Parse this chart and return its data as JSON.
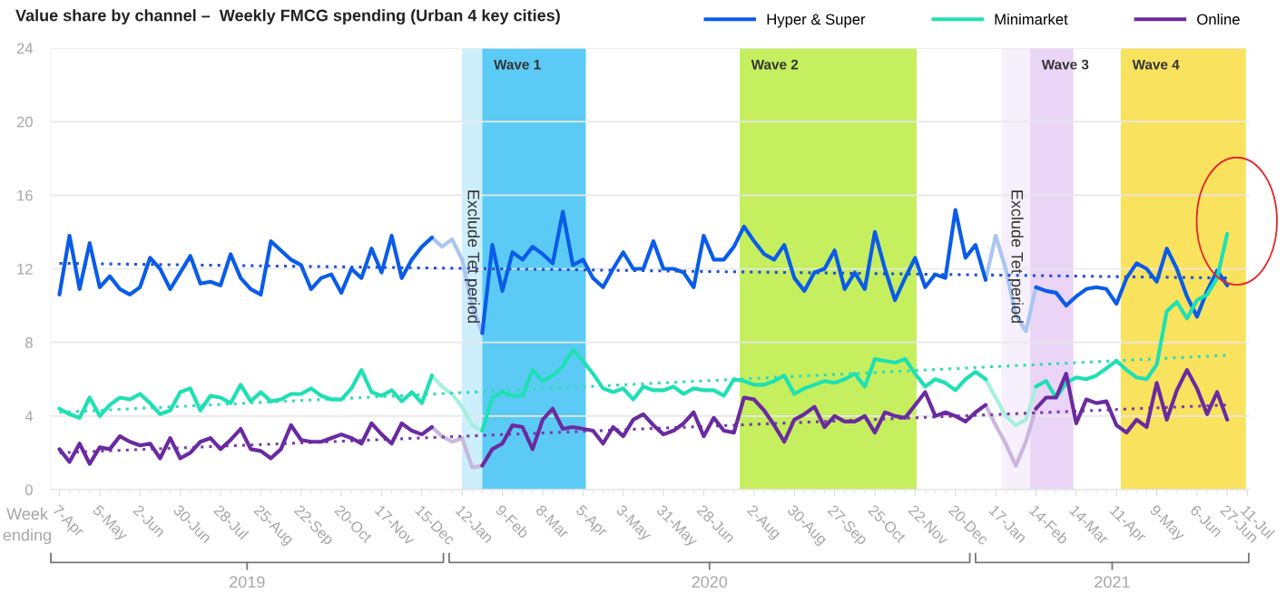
{
  "chart_data": {
    "type": "line",
    "title": "Value share by channel –  Weekly FMCG spending (Urban 4 key cities)",
    "x": [
      "2019-04-07",
      "2019-04-14",
      "2019-04-21",
      "2019-04-28",
      "2019-05-05",
      "2019-05-12",
      "2019-05-19",
      "2019-05-26",
      "2019-06-02",
      "2019-06-09",
      "2019-06-16",
      "2019-06-23",
      "2019-06-30",
      "2019-07-07",
      "2019-07-14",
      "2019-07-21",
      "2019-07-28",
      "2019-08-04",
      "2019-08-11",
      "2019-08-18",
      "2019-08-25",
      "2019-09-01",
      "2019-09-08",
      "2019-09-15",
      "2019-09-22",
      "2019-09-29",
      "2019-10-06",
      "2019-10-13",
      "2019-10-20",
      "2019-10-27",
      "2019-11-03",
      "2019-11-10",
      "2019-11-17",
      "2019-11-24",
      "2019-12-01",
      "2019-12-08",
      "2019-12-15",
      "2019-12-22",
      "2019-12-29",
      "2020-01-05",
      "2020-01-12",
      "2020-01-19",
      "2020-01-26",
      "2020-02-02",
      "2020-02-09",
      "2020-02-16",
      "2020-02-23",
      "2020-03-01",
      "2020-03-08",
      "2020-03-15",
      "2020-03-22",
      "2020-03-29",
      "2020-04-05",
      "2020-04-12",
      "2020-04-19",
      "2020-04-26",
      "2020-05-03",
      "2020-05-10",
      "2020-05-17",
      "2020-05-24",
      "2020-05-31",
      "2020-06-07",
      "2020-06-14",
      "2020-06-21",
      "2020-06-28",
      "2020-07-05",
      "2020-07-12",
      "2020-07-19",
      "2020-07-26",
      "2020-08-02",
      "2020-08-09",
      "2020-08-16",
      "2020-08-23",
      "2020-08-30",
      "2020-09-06",
      "2020-09-13",
      "2020-09-20",
      "2020-09-27",
      "2020-10-04",
      "2020-10-11",
      "2020-10-18",
      "2020-10-25",
      "2020-11-01",
      "2020-11-08",
      "2020-11-15",
      "2020-11-22",
      "2020-11-29",
      "2020-12-06",
      "2020-12-13",
      "2020-12-20",
      "2020-12-27",
      "2021-01-03",
      "2021-01-10",
      "2021-01-17",
      "2021-01-24",
      "2021-01-31",
      "2021-02-07",
      "2021-02-14",
      "2021-02-21",
      "2021-02-28",
      "2021-03-07",
      "2021-03-14",
      "2021-03-21",
      "2021-03-28",
      "2021-04-04",
      "2021-04-11",
      "2021-04-18",
      "2021-04-25",
      "2021-05-02",
      "2021-05-09",
      "2021-05-16",
      "2021-05-23",
      "2021-05-30",
      "2021-06-06",
      "2021-06-13",
      "2021-06-20",
      "2021-06-27"
    ],
    "series": [
      {
        "name": "Hyper & Super",
        "color": "#0a5ce8",
        "values": [
          10.6,
          13.8,
          10.9,
          13.4,
          11.0,
          11.6,
          10.9,
          10.6,
          11.0,
          12.6,
          12.0,
          10.9,
          11.8,
          12.7,
          11.2,
          11.3,
          11.1,
          12.8,
          11.5,
          10.9,
          10.6,
          13.5,
          13.0,
          12.5,
          12.2,
          10.9,
          11.5,
          11.7,
          10.7,
          12.0,
          11.5,
          13.1,
          11.8,
          13.8,
          11.5,
          12.5,
          13.2,
          13.7,
          null,
          null,
          null,
          null,
          8.5,
          13.3,
          10.8,
          12.9,
          12.5,
          13.2,
          12.8,
          12.3,
          15.1,
          12.2,
          12.5,
          11.5,
          11.0,
          12.0,
          12.9,
          12.0,
          12.0,
          13.5,
          12.0,
          12.0,
          11.8,
          11.0,
          13.8,
          12.5,
          12.5,
          13.2,
          14.3,
          13.5,
          12.8,
          12.5,
          13.3,
          11.5,
          10.8,
          11.8,
          12.0,
          13.0,
          10.9,
          11.8,
          10.9,
          14.0,
          12.0,
          10.3,
          11.5,
          12.6,
          11.0,
          11.7,
          11.5,
          15.2,
          12.6,
          13.3,
          11.4,
          null,
          null,
          null,
          null,
          11.0,
          10.8,
          10.7,
          10.0,
          10.5,
          10.9,
          11.0,
          10.9,
          10.1,
          11.5,
          12.3,
          12.0,
          11.3,
          13.1,
          12.0,
          10.5,
          9.4,
          10.8,
          11.9,
          11.1
        ]
      },
      {
        "name": "Minimarket",
        "color": "#1ee0b4",
        "values": [
          4.4,
          4.1,
          3.9,
          5.0,
          4.0,
          4.6,
          5.0,
          4.9,
          5.2,
          4.7,
          4.1,
          4.3,
          5.3,
          5.5,
          4.3,
          5.1,
          5.0,
          4.7,
          5.7,
          4.8,
          5.3,
          4.8,
          4.9,
          5.2,
          5.2,
          5.5,
          5.1,
          4.9,
          4.9,
          5.5,
          6.5,
          5.3,
          5.1,
          5.4,
          4.8,
          5.3,
          4.7,
          6.2,
          null,
          null,
          null,
          null,
          3.2,
          5.0,
          5.3,
          5.1,
          5.1,
          6.5,
          5.9,
          6.2,
          6.7,
          7.6,
          7.0,
          6.3,
          5.5,
          5.3,
          5.5,
          4.9,
          5.6,
          5.4,
          5.4,
          5.6,
          5.2,
          5.5,
          5.4,
          5.4,
          5.1,
          6.0,
          5.9,
          5.7,
          5.7,
          5.9,
          6.2,
          5.2,
          5.5,
          5.7,
          5.9,
          5.8,
          6.0,
          6.3,
          5.6,
          7.1,
          7.0,
          6.9,
          7.1,
          6.3,
          5.6,
          6.0,
          5.8,
          5.4,
          6.0,
          6.4,
          6.0,
          null,
          null,
          null,
          null,
          5.6,
          5.9,
          5.0,
          5.8,
          6.1,
          6.0,
          6.2,
          6.6,
          7.0,
          6.5,
          6.1,
          6.0,
          6.8,
          9.7,
          10.2,
          9.3,
          10.3,
          10.6,
          11.5,
          13.9
        ]
      },
      {
        "name": "Online",
        "color": "#6a2aa0",
        "values": [
          2.2,
          1.5,
          2.5,
          1.4,
          2.3,
          2.2,
          2.9,
          2.6,
          2.4,
          2.5,
          1.7,
          2.8,
          1.7,
          2.0,
          2.6,
          2.8,
          2.2,
          2.7,
          3.3,
          2.2,
          2.1,
          1.7,
          2.2,
          3.5,
          2.7,
          2.6,
          2.6,
          2.8,
          3.0,
          2.8,
          2.5,
          3.6,
          3.0,
          2.5,
          3.6,
          3.2,
          3.0,
          3.4,
          null,
          null,
          null,
          null,
          1.3,
          2.2,
          2.5,
          3.5,
          3.4,
          2.2,
          3.8,
          4.4,
          3.3,
          3.4,
          3.3,
          3.2,
          2.5,
          3.4,
          2.9,
          3.8,
          4.1,
          3.5,
          3.0,
          3.2,
          3.6,
          4.2,
          2.9,
          3.9,
          3.2,
          3.1,
          5.0,
          4.9,
          4.3,
          3.5,
          2.6,
          3.8,
          4.1,
          4.5,
          3.4,
          4.0,
          3.7,
          3.7,
          4.0,
          3.1,
          4.2,
          4.0,
          3.9,
          4.6,
          5.3,
          4.0,
          4.2,
          4.0,
          3.7,
          4.2,
          4.6,
          null,
          null,
          null,
          null,
          4.4,
          5.0,
          5.0,
          6.3,
          3.6,
          4.9,
          4.7,
          4.8,
          3.5,
          3.1,
          3.8,
          3.4,
          5.8,
          3.8,
          5.4,
          6.5,
          5.5,
          4.1,
          5.3,
          3.8
        ]
      },
      {
        "color": "#a9c5f3",
        "x": [
          "2019-12-22",
          "2019-12-29",
          "2020-01-05",
          "2020-01-12",
          "2020-01-19",
          "2020-01-26"
        ],
        "values": [
          13.7,
          13.2,
          13.6,
          12.5,
          10.0,
          8.5
        ]
      },
      {
        "color": "#a9c5f3",
        "x": [
          "2021-01-10",
          "2021-01-17",
          "2021-01-24",
          "2021-01-31",
          "2021-02-07",
          "2021-02-14"
        ],
        "values": [
          11.4,
          13.8,
          12.0,
          9.5,
          8.6,
          11.0
        ]
      },
      {
        "color": "#a6f0df",
        "x": [
          "2019-12-22",
          "2019-12-29",
          "2020-01-05",
          "2020-01-12",
          "2020-01-19",
          "2020-01-26"
        ],
        "values": [
          6.2,
          5.6,
          5.2,
          4.5,
          3.5,
          3.2
        ]
      },
      {
        "color": "#a6f0df",
        "x": [
          "2021-01-10",
          "2021-01-17",
          "2021-01-24",
          "2021-01-31",
          "2021-02-07",
          "2021-02-14"
        ],
        "values": [
          6.0,
          5.0,
          4.0,
          3.5,
          3.8,
          5.6
        ]
      },
      {
        "color": "#c9b6dd",
        "x": [
          "2019-12-22",
          "2019-12-29",
          "2020-01-05",
          "2020-01-12",
          "2020-01-19",
          "2020-01-26"
        ],
        "values": [
          3.4,
          2.9,
          2.6,
          2.8,
          1.2,
          1.3
        ]
      },
      {
        "color": "#c9b6dd",
        "x": [
          "2021-01-10",
          "2021-01-17",
          "2021-01-24",
          "2021-01-31",
          "2021-02-07",
          "2021-02-14"
        ],
        "values": [
          4.6,
          3.5,
          2.5,
          1.3,
          2.6,
          4.4
        ]
      },
      {
        "color": "#1f4fd6",
        "x": [
          "2019-04-07",
          "2021-06-27"
        ],
        "values": [
          12.3,
          11.5
        ],
        "line_style": "dotted"
      },
      {
        "color": "#2fdcb4",
        "x": [
          "2019-04-07",
          "2021-06-27"
        ],
        "values": [
          4.2,
          7.3
        ],
        "line_style": "dotted"
      },
      {
        "color": "#7a3aa8",
        "x": [
          "2019-04-07",
          "2021-06-27"
        ],
        "values": [
          2.0,
          4.6
        ],
        "line_style": "dotted"
      }
    ],
    "bands": [
      {
        "axis": "x",
        "from": "2020-01-12",
        "to": "2020-01-26",
        "color": "#cdeefb",
        "label": "Exclude Tet period"
      },
      {
        "axis": "x",
        "from": "2020-01-26",
        "to": "2020-04-07",
        "color": "#5bcbf5",
        "label": "Wave 1"
      },
      {
        "axis": "x",
        "from": "2020-07-23",
        "to": "2020-11-23",
        "color": "#c5ef5e",
        "label": "Wave 2"
      },
      {
        "axis": "x",
        "from": "2021-01-21",
        "to": "2021-02-10",
        "color": "#f6effc",
        "label": "Exclude Tet period"
      },
      {
        "axis": "x",
        "from": "2021-02-10",
        "to": "2021-03-12",
        "color": "#ead5f7",
        "label": "Wave 3"
      },
      {
        "axis": "x",
        "from": "2021-04-14",
        "to": "2021-07-10",
        "color": "#f9e25e",
        "label": "Wave 4"
      }
    ],
    "annotations": [
      "Week ending",
      "2019",
      "2020",
      "2021"
    ],
    "xlim": [
      "2019-04-01",
      "2021-07-12"
    ],
    "xticks": [
      {
        "value": "2019-04-07",
        "label": "7-Apr"
      },
      {
        "value": "2019-05-05",
        "label": "5-May"
      },
      {
        "value": "2019-06-02",
        "label": "2-Jun"
      },
      {
        "value": "2019-06-30",
        "label": "30-Jun"
      },
      {
        "value": "2019-07-28",
        "label": "28-Jul"
      },
      {
        "value": "2019-08-25",
        "label": "25-Aug"
      },
      {
        "value": "2019-09-22",
        "label": "22-Sep"
      },
      {
        "value": "2019-10-20",
        "label": "20-Oct"
      },
      {
        "value": "2019-11-17",
        "label": "17-Nov"
      },
      {
        "value": "2019-12-15",
        "label": "15-Dec"
      },
      {
        "value": "2020-01-12",
        "label": "12-Jan"
      },
      {
        "value": "2020-02-09",
        "label": "9-Feb"
      },
      {
        "value": "2020-03-08",
        "label": "8-Mar"
      },
      {
        "value": "2020-04-05",
        "label": "5-Apr"
      },
      {
        "value": "2020-05-03",
        "label": "3-May"
      },
      {
        "value": "2020-05-31",
        "label": "31-May"
      },
      {
        "value": "2020-06-28",
        "label": "28-Jun"
      },
      {
        "value": "2020-08-02",
        "label": "2-Aug"
      },
      {
        "value": "2020-08-30",
        "label": "30-Aug"
      },
      {
        "value": "2020-09-27",
        "label": "27-Sep"
      },
      {
        "value": "2020-10-25",
        "label": "25-Oct"
      },
      {
        "value": "2020-11-22",
        "label": "22-Nov"
      },
      {
        "value": "2020-12-20",
        "label": "20-Dec"
      },
      {
        "value": "2021-01-17",
        "label": "17-Jan"
      },
      {
        "value": "2021-02-14",
        "label": "14-Feb"
      },
      {
        "value": "2021-03-14",
        "label": "14-Mar"
      },
      {
        "value": "2021-04-11",
        "label": "11-Apr"
      },
      {
        "value": "2021-05-09",
        "label": "9-May"
      },
      {
        "value": "2021-06-06",
        "label": "6-Jun"
      },
      {
        "value": "2021-06-27",
        "label": "27-Jun"
      },
      {
        "value": "2021-07-11",
        "label": "11-Jul"
      }
    ],
    "ylim": [
      0,
      24
    ],
    "yticks": [
      0,
      4,
      8,
      12,
      16,
      20,
      24
    ],
    "grid": "y",
    "legend": "top right",
    "marker": "none"
  }
}
